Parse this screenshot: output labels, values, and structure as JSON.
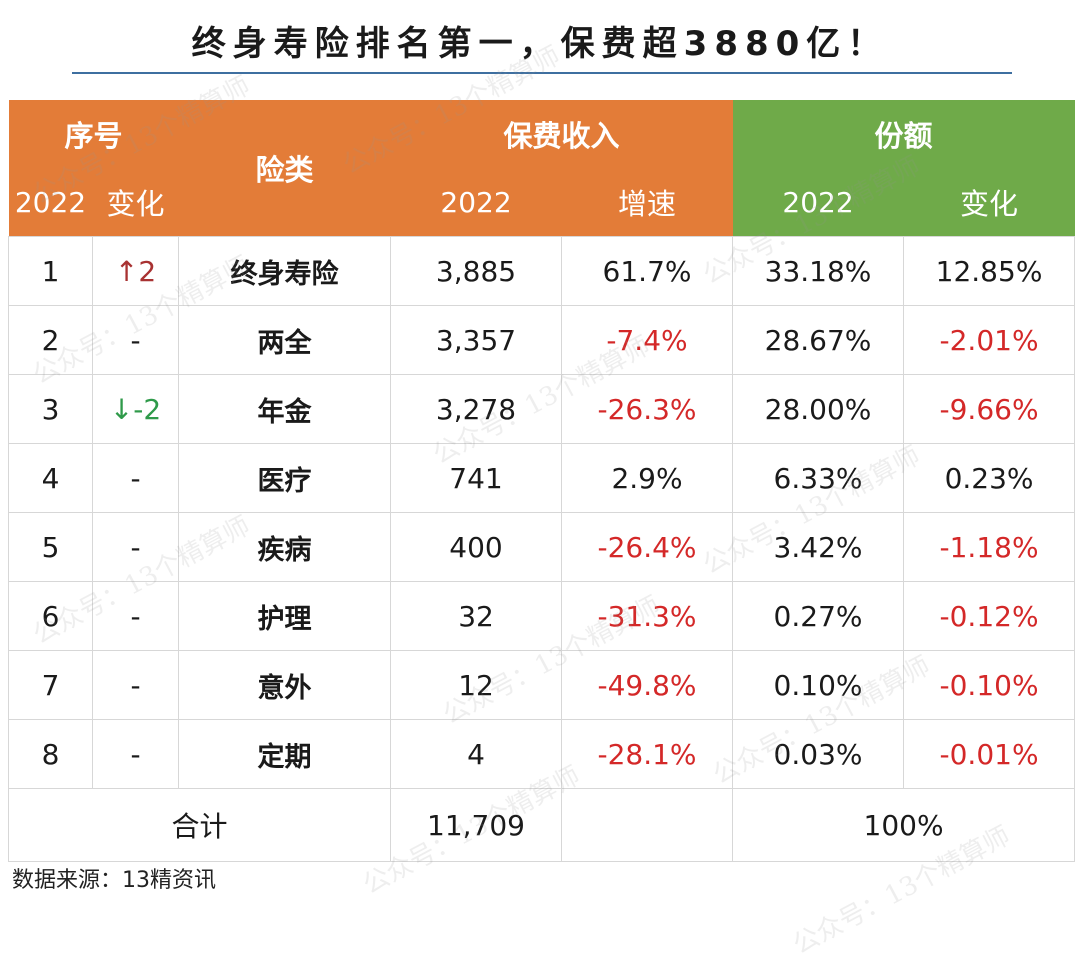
{
  "title": "终身寿险排名第一，保费超3880亿！",
  "headers": {
    "serial": "序号",
    "year": "2022",
    "change": "变化",
    "category": "险类",
    "premium": "保费收入",
    "growth": "增速",
    "share": "份额"
  },
  "rows": [
    {
      "rank": "1",
      "change": "↑2",
      "change_dir": "up",
      "category": "终身寿险",
      "premium": "3,885",
      "growth": "61.7%",
      "growth_neg": false,
      "share": "33.18%",
      "share_change": "12.85%",
      "share_change_neg": false
    },
    {
      "rank": "2",
      "change": "-",
      "change_dir": "none",
      "category": "两全",
      "premium": "3,357",
      "growth": "-7.4%",
      "growth_neg": true,
      "share": "28.67%",
      "share_change": "-2.01%",
      "share_change_neg": true
    },
    {
      "rank": "3",
      "change": "↓-2",
      "change_dir": "down",
      "category": "年金",
      "premium": "3,278",
      "growth": "-26.3%",
      "growth_neg": true,
      "share": "28.00%",
      "share_change": "-9.66%",
      "share_change_neg": true
    },
    {
      "rank": "4",
      "change": "-",
      "change_dir": "none",
      "category": "医疗",
      "premium": "741",
      "growth": "2.9%",
      "growth_neg": false,
      "share": "6.33%",
      "share_change": "0.23%",
      "share_change_neg": false
    },
    {
      "rank": "5",
      "change": "-",
      "change_dir": "none",
      "category": "疾病",
      "premium": "400",
      "growth": "-26.4%",
      "growth_neg": true,
      "share": "3.42%",
      "share_change": "-1.18%",
      "share_change_neg": true
    },
    {
      "rank": "6",
      "change": "-",
      "change_dir": "none",
      "category": "护理",
      "premium": "32",
      "growth": "-31.3%",
      "growth_neg": true,
      "share": "0.27%",
      "share_change": "-0.12%",
      "share_change_neg": true
    },
    {
      "rank": "7",
      "change": "-",
      "change_dir": "none",
      "category": "意外",
      "premium": "12",
      "growth": "-49.8%",
      "growth_neg": true,
      "share": "0.10%",
      "share_change": "-0.10%",
      "share_change_neg": true
    },
    {
      "rank": "8",
      "change": "-",
      "change_dir": "none",
      "category": "定期",
      "premium": "4",
      "growth": "-28.1%",
      "growth_neg": true,
      "share": "0.03%",
      "share_change": "-0.01%",
      "share_change_neg": true
    }
  ],
  "total": {
    "label": "合计",
    "premium": "11,709",
    "share": "100%"
  },
  "source": "数据来源：13精资讯",
  "watermarks": [
    "公众号：13个精算师"
  ],
  "colors": {
    "orange_header": "#e37c38",
    "green_header": "#6faa49",
    "negative": "#d42828",
    "rank_up": "#a83232",
    "rank_down": "#2f9a4a",
    "title_rule": "#3e6fa0"
  }
}
